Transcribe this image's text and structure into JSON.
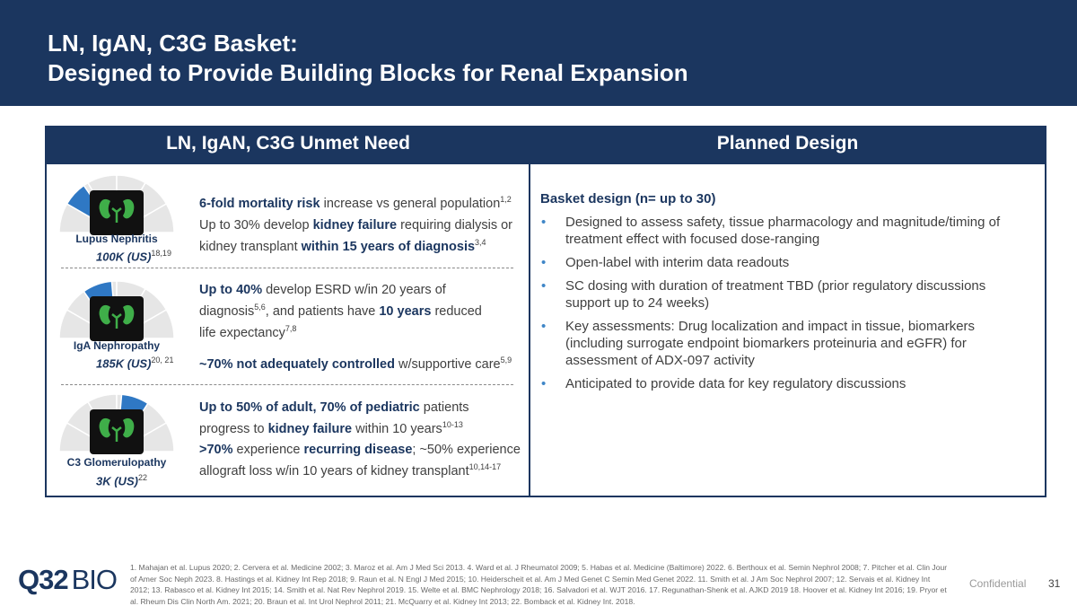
{
  "header": {
    "title_lines": [
      "LN, IgAN, C3G Basket:",
      "Designed to Provide Building Blocks for Renal Expansion"
    ]
  },
  "table": {
    "headers": [
      "LN, IgAN, C3G Unmet Need",
      "Planned Design"
    ],
    "left": {
      "rows": [
        {
          "condition": "Lupus Nephritis",
          "prevalence": "100K (US)",
          "prevalence_refs": "18,19",
          "points": [
            [
              "6-fold mortality risk",
              " increase vs general population",
              "1,2"
            ],
            [
              "Up to 30% develop ",
              "kidney failure",
              " requiring dialysis or kidney transplant ",
              "within 15 years of diagnosis",
              "3,4"
            ]
          ]
        },
        {
          "condition": "IgA Nephropathy",
          "prevalence": "185K (US)",
          "prevalence_refs": "20, 21",
          "points": [
            [
              "Up to 40%",
              " develop ESRD w/in 20 years of diagnosis",
              "5,6",
              ", and patients have ",
              "10 years",
              " reduced life expectancy",
              "7,8"
            ],
            [
              "~70% not adequately controlled",
              " w/supportive care",
              "5,9"
            ]
          ]
        },
        {
          "condition": "C3 Glomerulopathy",
          "prevalence": "3K (US)",
          "prevalence_refs": "22",
          "points": [
            [
              "Up to 50% of adult, 70% of pediatric",
              " patients progress to ",
              "kidney failure",
              " within 10 years",
              "10-13"
            ],
            [
              ">70%",
              " experience ",
              "recurring disease",
              "; ~50% experience allograft loss w/in 10 years of kidney transplant",
              "10,14-17"
            ]
          ]
        }
      ]
    },
    "right": {
      "heading": "Basket design (n= up to 30)",
      "bullets": [
        "Designed to assess safety, tissue pharmacology and magnitude/timing of treatment effect with focused dose-ranging",
        "Open-label with interim data readouts",
        "SC dosing with duration of treatment TBD (prior regulatory discussions support up to 24 weeks)",
        "Key assessments: Drug localization and impact in tissue, biomarkers (including surrogate endpoint biomarkers proteinuria and eGFR) for assessment of ADX-097 activity",
        "Anticipated to provide data for key regulatory discussions"
      ]
    }
  },
  "footer": {
    "logo": [
      "Q32",
      "BIO"
    ],
    "references": "1. Mahajan et al. Lupus 2020; 2. Cervera et al. Medicine 2002; 3. Maroz et al. Am J Med Sci 2013. 4. Ward et al. J Rheumatol 2009; 5. Habas et al. Medicine (Baltimore) 2022. 6. Berthoux et al. Semin Nephrol 2008; 7. Pitcher et al. Clin Jour of Amer Soc Neph 2023. 8. Hastings et al. Kidney Int Rep 2018; 9. Raun et al. N Engl J Med 2015; 10. Heiderscheit et al. Am J Med Genet C Semin Med Genet 2022. 11. Smith et al. J Am Soc Nephrol 2007; 12. Servais et al. Kidney Int 2012; 13. Rabasco et al. Kidney Int 2015; 14. Smith et al. Nat Rev Nephrol 2019. 15. Welte et al. BMC Nephrology 2018; 16. Salvadori et al. WJT 2016. 17. Regunathan-Shenk et al. AJKD 2019 18. Hoover et al. Kidney Int 2016; 19. Pryor et al. Rheum Dis Clin North Am. 2021; 20. Braun et al. Int Urol Nephrol 2011; 21. McQuarry et al. Kidney Int 2013; 22. Bomback et al. Kidney Int. 2018.",
    "confidential": "Confidential",
    "page": "31"
  }
}
